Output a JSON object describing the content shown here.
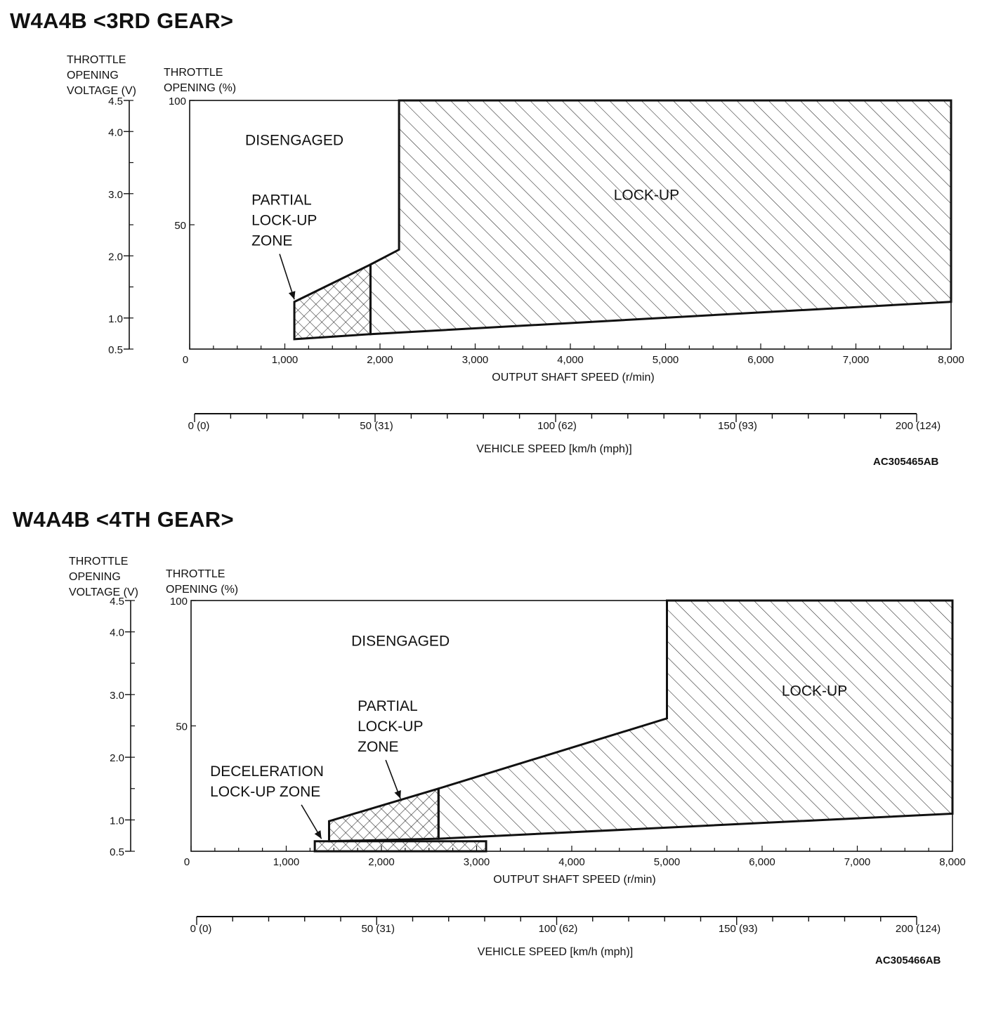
{
  "chart_data": [
    {
      "type": "area",
      "title": "W4A4B <3RD GEAR>",
      "code": "AC305465AB",
      "axes": {
        "voltage_label": [
          "THROTTLE",
          "OPENING",
          "VOLTAGE (V)"
        ],
        "voltage_ticks": [
          "4.5",
          "4.0",
          "3.0",
          "2.0",
          "1.0",
          "0.5"
        ],
        "voltage_tick_values": [
          4.5,
          4.0,
          3.0,
          2.0,
          1.0,
          0.5
        ],
        "ylabel": [
          "THROTTLE",
          "OPENING (%)"
        ],
        "y_ticks": [
          "100",
          "50"
        ],
        "y_tick_values": [
          100,
          50
        ],
        "ylim": [
          0,
          100
        ],
        "xlabel": "OUTPUT SHAFT SPEED (r/min)",
        "x_ticks": [
          "0",
          "1,000",
          "2,000",
          "3,000",
          "4,000",
          "5,000",
          "6,000",
          "7,000",
          "8,000"
        ],
        "x_tick_values": [
          0,
          1000,
          2000,
          3000,
          4000,
          5000,
          6000,
          7000,
          8000
        ],
        "xlim": [
          0,
          8000
        ],
        "vehicle_label": "VEHICLE SPEED [km/h (mph)]",
        "vehicle_ticks": [
          "0 (0)",
          "50 (31)",
          "100 (62)",
          "150 (93)",
          "200 (124)"
        ],
        "vehicle_tick_values": [
          0,
          50,
          100,
          150,
          200
        ],
        "vehicle_max": 200
      },
      "zones": [
        {
          "name": "partial-lockup",
          "pattern": "cross",
          "points": [
            [
              1100,
              19
            ],
            [
              1900,
              34
            ],
            [
              1900,
              6
            ],
            [
              1100,
              4
            ]
          ]
        },
        {
          "name": "lockup",
          "pattern": "diagonal",
          "points": [
            [
              1900,
              34
            ],
            [
              2200,
              40
            ],
            [
              2200,
              100
            ],
            [
              8000,
              100
            ],
            [
              8000,
              19
            ],
            [
              1900,
              6
            ]
          ]
        }
      ],
      "labels": [
        {
          "lines": [
            "DISENGAGED"
          ],
          "x": 1100,
          "y": 82
        },
        {
          "lines": [
            "PARTIAL",
            "LOCK-UP",
            "ZONE"
          ],
          "x": 650,
          "y": 58,
          "anchor": "start",
          "arrow_to": [
            1100,
            20
          ]
        },
        {
          "lines": [
            "LOCK-UP"
          ],
          "x": 4800,
          "y": 60
        }
      ]
    },
    {
      "type": "area",
      "title": "W4A4B <4TH GEAR>",
      "code": "AC305466AB",
      "axes": {
        "voltage_label": [
          "THROTTLE",
          "OPENING",
          "VOLTAGE (V)"
        ],
        "voltage_ticks": [
          "4.5",
          "4.0",
          "3.0",
          "2.0",
          "1.0",
          "0.5"
        ],
        "voltage_tick_values": [
          4.5,
          4.0,
          3.0,
          2.0,
          1.0,
          0.5
        ],
        "ylabel": [
          "THROTTLE",
          "OPENING (%)"
        ],
        "y_ticks": [
          "100",
          "50"
        ],
        "y_tick_values": [
          100,
          50
        ],
        "ylim": [
          0,
          100
        ],
        "xlabel": "OUTPUT SHAFT SPEED (r/min)",
        "x_ticks": [
          "0",
          "1,000",
          "2,000",
          "3,000",
          "4,000",
          "5,000",
          "6,000",
          "7,000",
          "8,000"
        ],
        "x_tick_values": [
          0,
          1000,
          2000,
          3000,
          4000,
          5000,
          6000,
          7000,
          8000
        ],
        "xlim": [
          0,
          8000
        ],
        "vehicle_label": "VEHICLE SPEED [km/h (mph)]",
        "vehicle_ticks": [
          "0 (0)",
          "50 (31)",
          "100 (62)",
          "150 (93)",
          "200 (124)"
        ],
        "vehicle_tick_values": [
          0,
          50,
          100,
          150,
          200
        ],
        "vehicle_max": 200
      },
      "zones": [
        {
          "name": "deceleration-lockup",
          "pattern": "cross",
          "points": [
            [
              1300,
              4
            ],
            [
              3100,
              4
            ],
            [
              3100,
              0
            ],
            [
              1300,
              0
            ]
          ]
        },
        {
          "name": "partial-lockup",
          "pattern": "cross",
          "points": [
            [
              1450,
              12
            ],
            [
              2600,
              25
            ],
            [
              2600,
              5
            ],
            [
              1450,
              4
            ]
          ]
        },
        {
          "name": "lockup",
          "pattern": "diagonal",
          "points": [
            [
              2600,
              25
            ],
            [
              5000,
              53
            ],
            [
              5000,
              100
            ],
            [
              8000,
              100
            ],
            [
              8000,
              15
            ],
            [
              2600,
              5
            ]
          ]
        }
      ],
      "labels": [
        {
          "lines": [
            "DISENGAGED"
          ],
          "x": 2200,
          "y": 82
        },
        {
          "lines": [
            "PARTIAL",
            "LOCK-UP",
            "ZONE"
          ],
          "x": 1750,
          "y": 56,
          "anchor": "start",
          "arrow_to": [
            2200,
            21
          ]
        },
        {
          "lines": [
            "DECELERATION",
            "LOCK-UP ZONE"
          ],
          "x": 200,
          "y": 30,
          "anchor": "start",
          "arrow_to": [
            1370,
            5
          ]
        },
        {
          "lines": [
            "LOCK-UP"
          ],
          "x": 6550,
          "y": 62
        }
      ]
    }
  ]
}
